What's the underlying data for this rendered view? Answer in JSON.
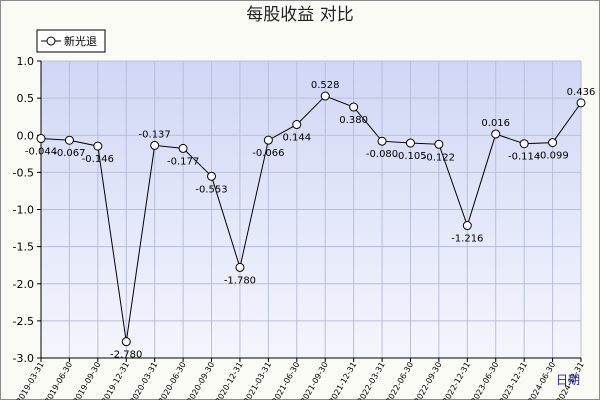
{
  "chart_data": {
    "type": "line",
    "title": "每股收益  对比",
    "xlabel": "日期",
    "ylabel": "",
    "ylim": [
      -3.0,
      1.0
    ],
    "yticks": [
      "1.0",
      "0.5",
      "0.0",
      "-0.5",
      "-1.0",
      "-1.5",
      "-2.0",
      "-2.5",
      "-3.0"
    ],
    "ytick_values": [
      1.0,
      0.5,
      0.0,
      -0.5,
      -1.0,
      -1.5,
      -2.0,
      -2.5,
      -3.0
    ],
    "grid": true,
    "legend_position": "top-left",
    "categories": [
      "2019-03-31",
      "2019-06-30",
      "2019-09-30",
      "2019-12-31",
      "2020-03-31",
      "2020-06-30",
      "2020-09-30",
      "2020-12-31",
      "2021-03-31",
      "2021-06-30",
      "2021-09-30",
      "2021-12-31",
      "2022-03-31",
      "2022-06-30",
      "2022-09-30",
      "2022-12-31",
      "2023-06-30",
      "2023-12-31",
      "2024-06-30",
      "2024-12-31"
    ],
    "series": [
      {
        "name": "新光退",
        "values": [
          -0.044,
          -0.067,
          -0.146,
          -2.78,
          -0.137,
          -0.177,
          -0.553,
          -1.78,
          -0.066,
          0.144,
          0.528,
          0.38,
          -0.08,
          -0.105,
          -0.122,
          -1.216,
          0.016,
          -0.114,
          -0.099,
          0.436
        ],
        "labels": [
          "-0.044",
          "-0.067",
          "-0.146",
          "-2.780",
          "-0.137",
          "-0.177",
          "-0.553",
          "-1.780",
          "-0.066",
          "0.144",
          "0.528",
          "0.380",
          "-0.080",
          "-0.105",
          "-0.122",
          "-1.216",
          "0.016",
          "-0.114",
          "-0.099",
          "0.436"
        ]
      }
    ]
  },
  "colors": {
    "plot_top": "#d0d7f5",
    "plot_bottom": "#f4f6fd",
    "grid": "#b9bfd9",
    "line": "#000000",
    "marker_fill": "#ffffff"
  }
}
